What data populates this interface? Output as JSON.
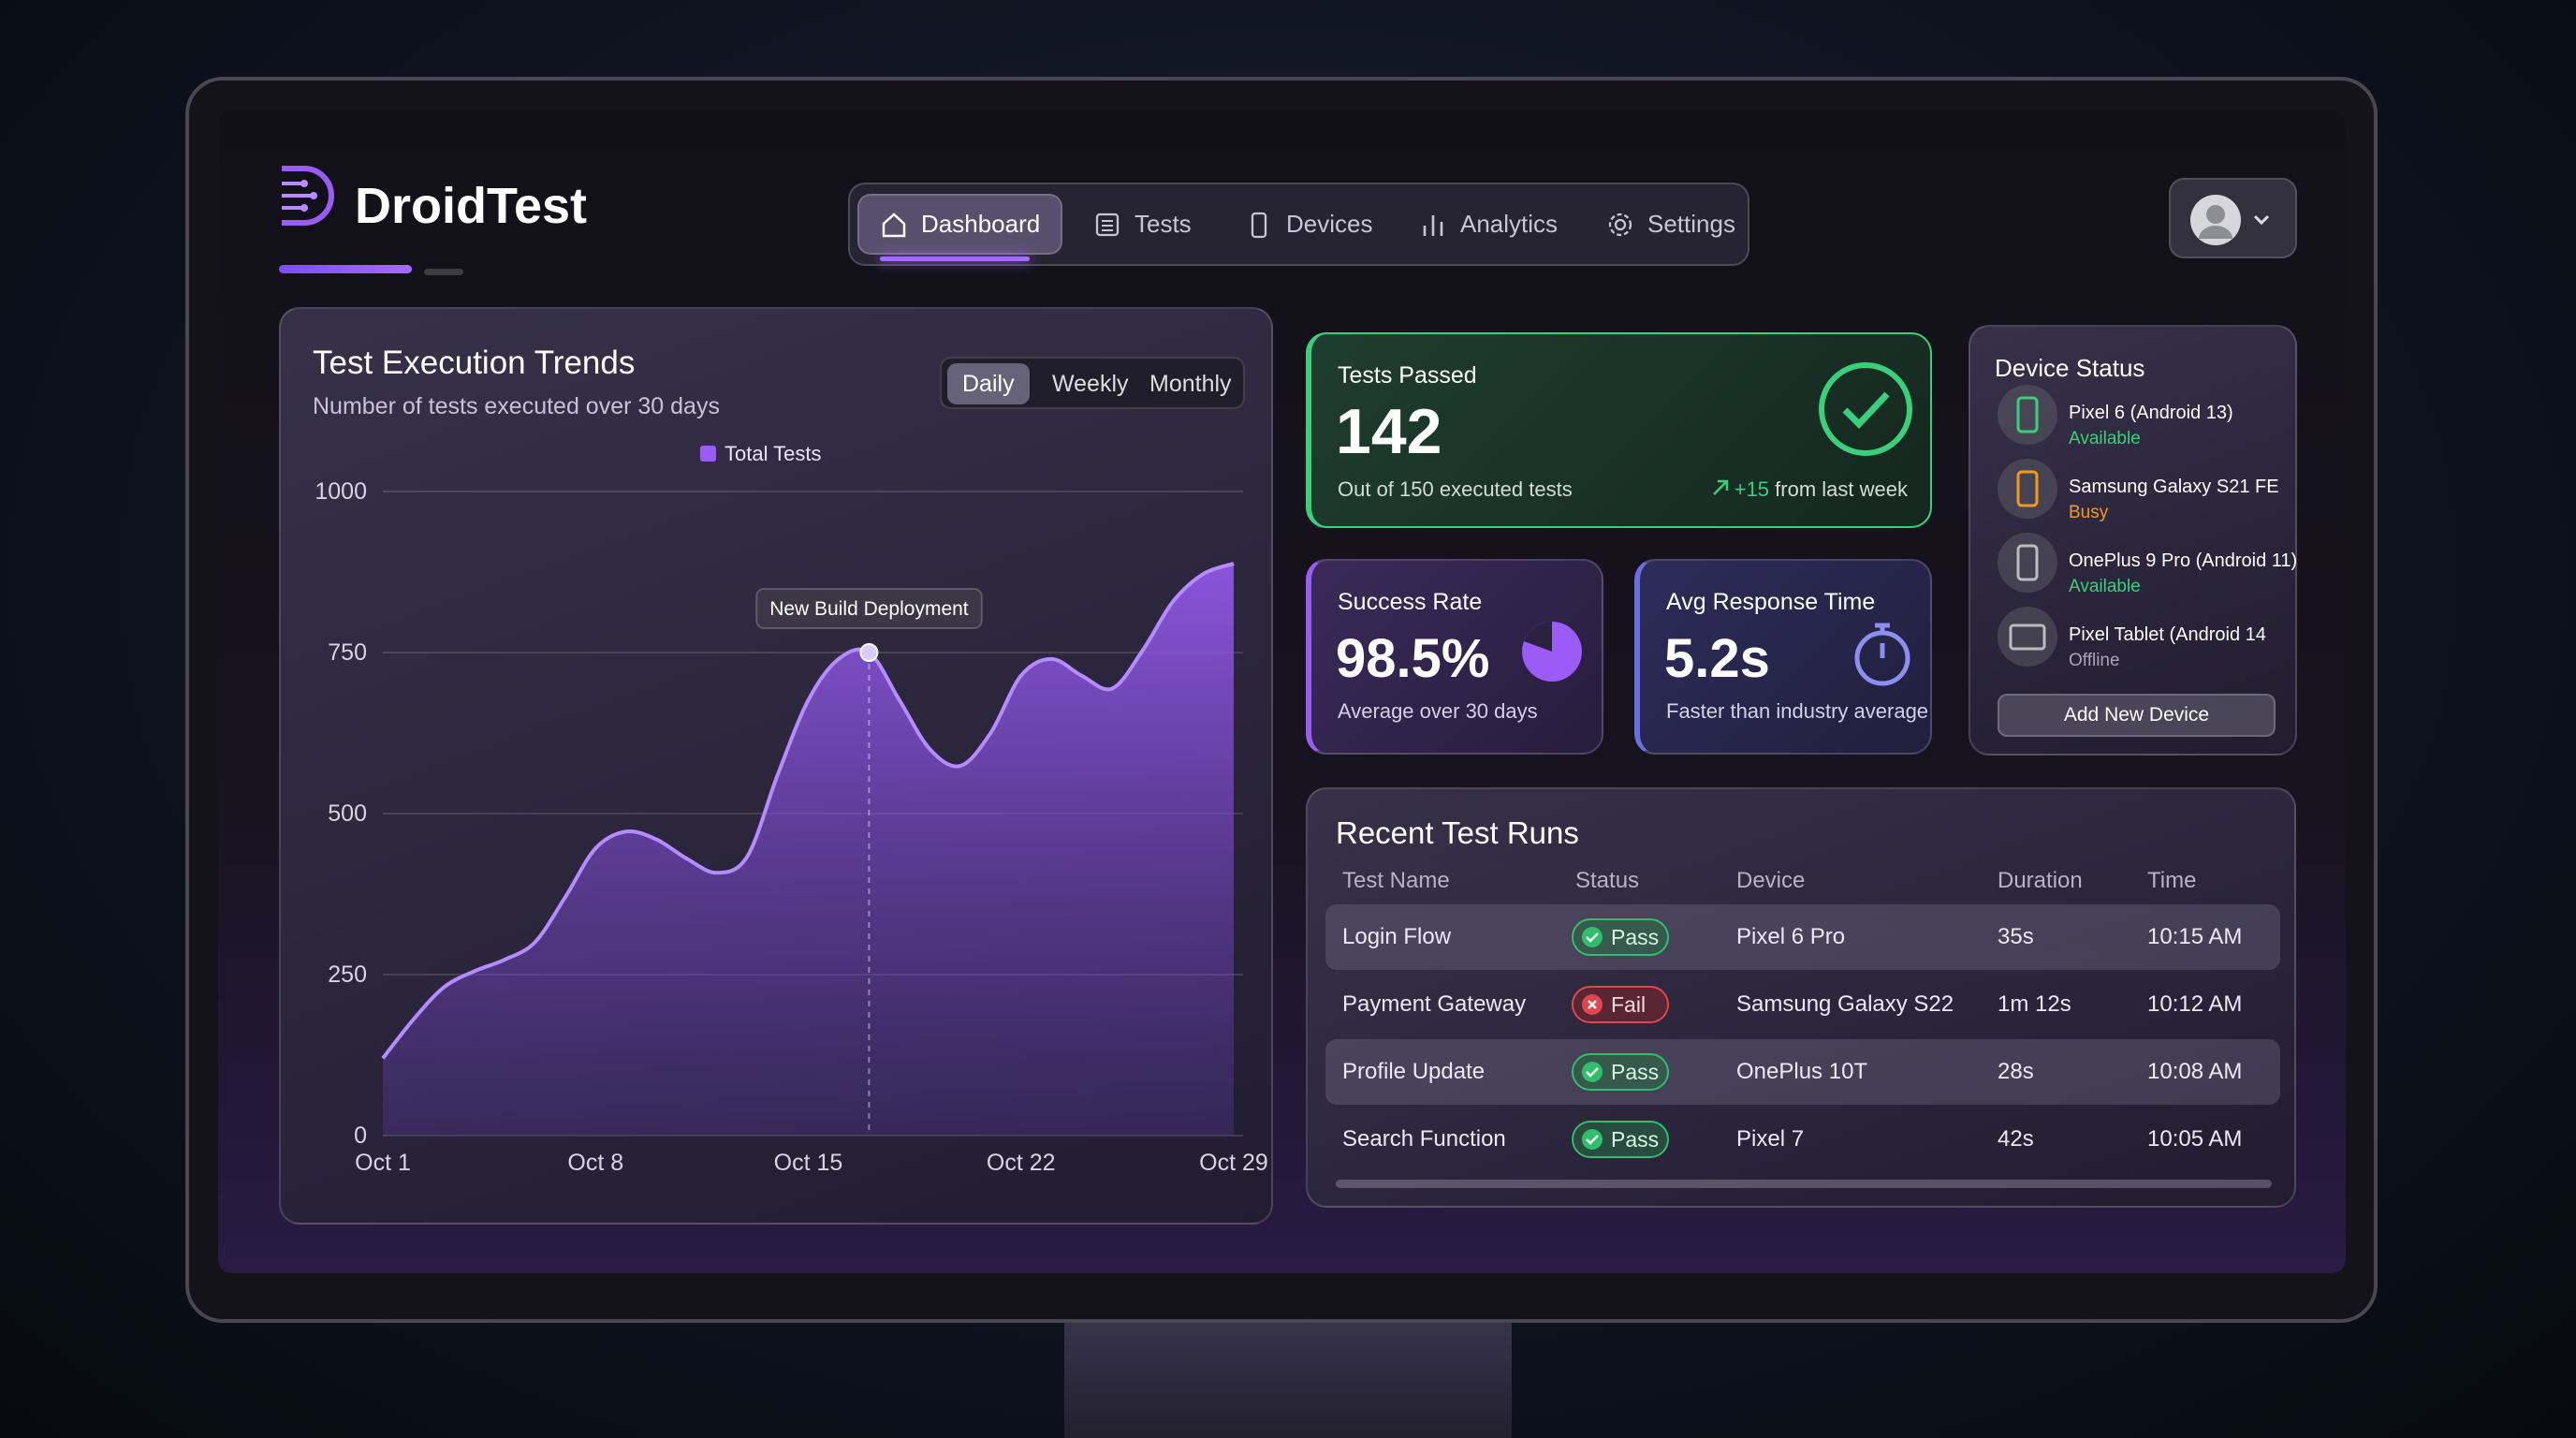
{
  "header": {
    "brand": "DroidTest"
  },
  "nav": {
    "items": [
      "Dashboard",
      "Tests",
      "Devices",
      "Analytics",
      "Settings"
    ],
    "active": 0
  },
  "trend_controls": {
    "options": [
      "Daily",
      "Weekly",
      "Monthly"
    ],
    "active": 0
  },
  "chart_data": {
    "type": "area",
    "title": "Test Execution Trends",
    "subtitle": "Number of tests executed over 30 days",
    "categories": [
      "Oct 1",
      null,
      null,
      null,
      null,
      null,
      null,
      "Oct 8",
      null,
      null,
      null,
      null,
      null,
      null,
      "Oct 15",
      null,
      null,
      null,
      null,
      null,
      null,
      "Oct 22",
      null,
      null,
      null,
      null,
      null,
      null,
      "Oct 29"
    ],
    "series": [
      {
        "name": "Total Tests",
        "color": "#9b5cf6",
        "values": [
          120,
          180,
          230,
          255,
          273,
          300,
          370,
          446,
          472,
          460,
          430,
          408,
          434,
          561,
          676,
          740,
          750,
          676,
          600,
          574,
          625,
          714,
          740,
          714,
          694,
          753,
          829,
          872,
          888
        ]
      }
    ],
    "ylim": [
      0,
      1000
    ],
    "yticks": [
      0,
      250,
      500,
      750,
      1000
    ],
    "grid": true,
    "annotation": {
      "text": "New Build Deployment",
      "index": 16
    }
  },
  "stats": {
    "tests_passed": {
      "title": "Tests Passed",
      "value": "142",
      "note": "Out of 150 executed tests",
      "change": "+15",
      "change_note": "from last week"
    },
    "success_rate": {
      "title": "Success Rate",
      "value": "98.5%",
      "note": "Average over 30 days"
    },
    "response_time": {
      "title": "Avg Response Time",
      "value": "5.2s",
      "note": "Faster than industry average"
    }
  },
  "device_status": {
    "title": "Device Status",
    "devices": [
      {
        "name": "Pixel 6 (Android 13)",
        "status": "Available"
      },
      {
        "name": "Samsung Galaxy S21 FE",
        "status": "Busy"
      },
      {
        "name": "OnePlus 9 Pro (Android 11)",
        "status": "Available"
      },
      {
        "name": "Pixel Tablet (Android 14",
        "status": "Offline"
      }
    ],
    "button": "Add New Device"
  },
  "recent_runs": {
    "title": "Recent Test Runs",
    "columns": [
      "Test Name",
      "Status",
      "Device",
      "Duration",
      "Time"
    ],
    "rows": [
      [
        "Login Flow",
        "Pass",
        "Pixel 6 Pro",
        "35s",
        "10:15 AM"
      ],
      [
        "Payment Gateway",
        "Fail",
        "Samsung Galaxy S22",
        "1m 12s",
        "10:12 AM"
      ],
      [
        "Profile Update",
        "Pass",
        "OnePlus 10T",
        "28s",
        "10:08 AM"
      ],
      [
        "Search Function",
        "Pass",
        "Pixel 7",
        "42s",
        "10:05 AM"
      ]
    ]
  }
}
